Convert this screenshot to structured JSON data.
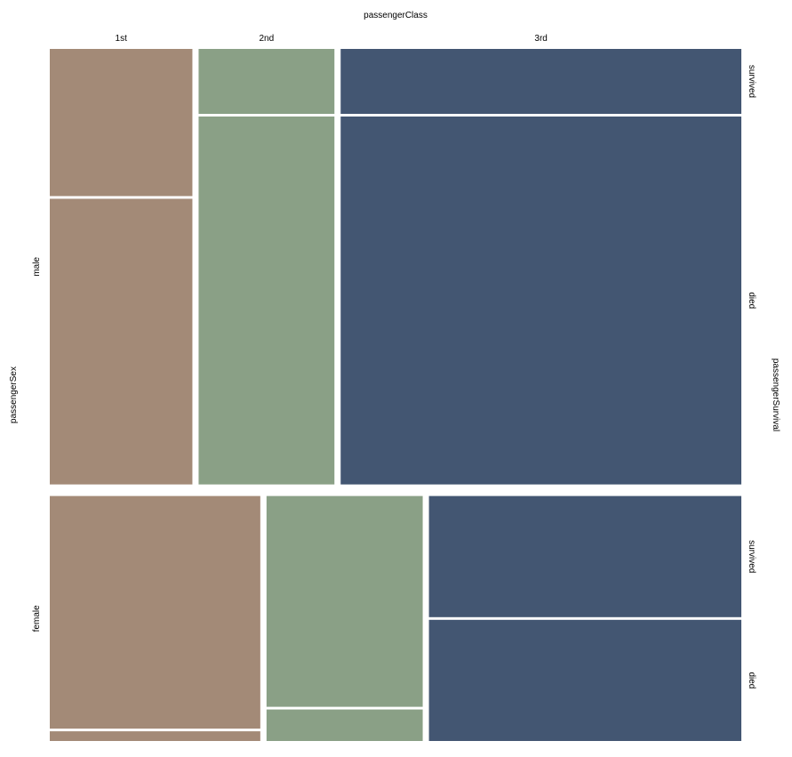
{
  "chart_data": {
    "type": "mosaic",
    "top_axis_label": "passengerClass",
    "left_axis_label": "passengerSex",
    "right_axis_label": "passengerSurvival",
    "class_labels": [
      "1st",
      "2nd",
      "3rd"
    ],
    "sex_labels": [
      "male",
      "female"
    ],
    "survival_labels": [
      "survived",
      "died"
    ],
    "colors": {
      "1st": "#a38a77",
      "2nd": "#8aa086",
      "3rd": "#435672"
    },
    "panels": [
      {
        "sex": "male",
        "share_of_passengers": 0.64,
        "cells": [
          {
            "class": "1st",
            "share_of_sex": 0.21,
            "survived_share": 0.34,
            "died_share": 0.66
          },
          {
            "class": "2nd",
            "share_of_sex": 0.2,
            "survived_share": 0.15,
            "died_share": 0.85
          },
          {
            "class": "3rd",
            "share_of_sex": 0.59,
            "survived_share": 0.15,
            "died_share": 0.85
          }
        ]
      },
      {
        "sex": "female",
        "share_of_passengers": 0.36,
        "cells": [
          {
            "class": "1st",
            "share_of_sex": 0.31,
            "survived_share": 0.96,
            "died_share": 0.04
          },
          {
            "class": "2nd",
            "share_of_sex": 0.23,
            "survived_share": 0.87,
            "died_share": 0.13
          },
          {
            "class": "3rd",
            "share_of_sex": 0.46,
            "survived_share": 0.5,
            "died_share": 0.5
          }
        ]
      }
    ]
  }
}
